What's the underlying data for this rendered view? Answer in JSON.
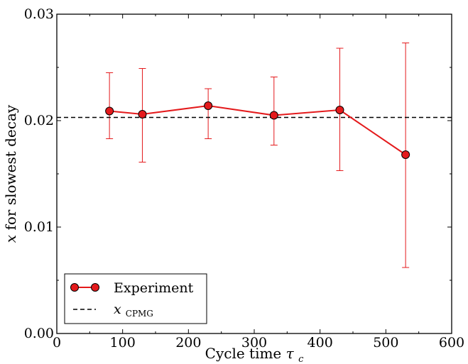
{
  "chart_data": {
    "type": "line",
    "xlim": [
      0,
      600
    ],
    "ylim": [
      0.0,
      0.03
    ],
    "xticks": [
      0,
      100,
      200,
      300,
      400,
      500,
      600
    ],
    "xtick_labels": [
      "0",
      "100",
      "200",
      "300",
      "400",
      "500",
      "600"
    ],
    "yticks": [
      0.0,
      0.01,
      0.02,
      0.03
    ],
    "ytick_labels": [
      "0.00",
      "0.01",
      "0.02",
      "0.03"
    ],
    "xlabel": "Cycle time",
    "xlabel_symbol": "τ",
    "xlabel_subscript": "c",
    "ylabel_symbol": "x",
    "ylabel": "for slowest decay",
    "grid": false,
    "legend_position": "bottom-left",
    "series": [
      {
        "name": "Experiment",
        "color": "#e41a1c",
        "marker": "circle",
        "x": [
          80,
          130,
          230,
          330,
          430,
          530
        ],
        "y": [
          0.0209,
          0.0206,
          0.0214,
          0.0205,
          0.021,
          0.0168
        ],
        "err_low": [
          0.0183,
          0.0161,
          0.0183,
          0.0177,
          0.0153,
          0.0062
        ],
        "err_high": [
          0.0245,
          0.0249,
          0.023,
          0.0241,
          0.0268,
          0.0273
        ]
      },
      {
        "name_symbol": "x",
        "name_subscript": "CPMG",
        "color": "#000000",
        "style": "dashed",
        "y_const": 0.0203
      }
    ]
  }
}
